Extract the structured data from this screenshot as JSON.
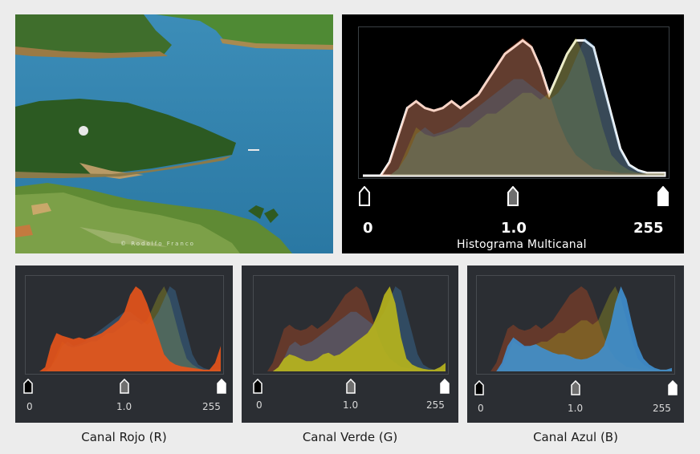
{
  "photo": {
    "credit": "© Rodolfo Franco"
  },
  "main_panel": {
    "title": "Histograma Multicanal",
    "min_value": "0",
    "mid_value": "1.0",
    "max_value": "255",
    "channels": [
      "red",
      "green",
      "blue",
      "luminance"
    ]
  },
  "channel_panels": [
    {
      "id": "red",
      "caption": "Canal Rojo (R)",
      "min_value": "0",
      "mid_value": "1.0",
      "max_value": "255",
      "color": "#e8541a"
    },
    {
      "id": "green",
      "caption": "Canal Verde (G)",
      "min_value": "0",
      "mid_value": "1.0",
      "max_value": "255",
      "color": "#b9b61c"
    },
    {
      "id": "blue",
      "caption": "Canal Azul (B)",
      "min_value": "0",
      "mid_value": "1.0",
      "max_value": "255",
      "color": "#3f8fcf"
    }
  ],
  "colors": {
    "background": "#ececec",
    "panel_black": "#000000",
    "panel_dark": "#2b2e33",
    "red_channel": "#e8541a",
    "green_channel": "#b9b61c",
    "blue_channel": "#3f8fcf"
  }
}
